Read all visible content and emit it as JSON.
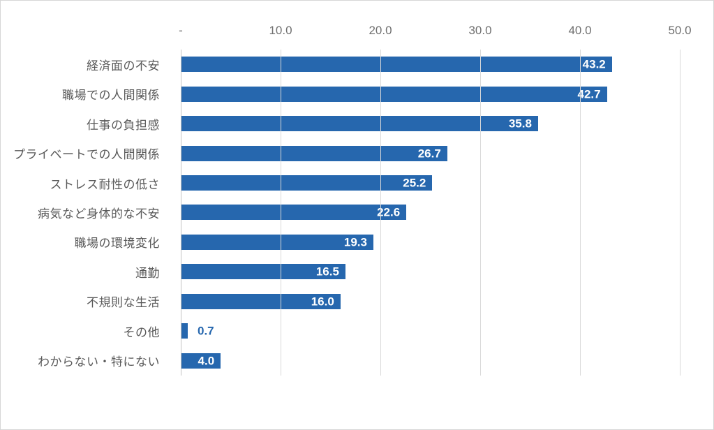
{
  "chart_data": {
    "type": "bar",
    "orientation": "horizontal",
    "title": "",
    "xlabel": "",
    "ylabel": "",
    "xlim": [
      0,
      50
    ],
    "grid": true,
    "legend": false,
    "categories": [
      "経済面の不安",
      "職場での人間関係",
      "仕事の負担感",
      "プライベートでの人間関係",
      "ストレス耐性の低さ",
      "病気など身体的な不安",
      "職場の環境変化",
      "通勤",
      "不規則な生活",
      "その他",
      "わからない・特にない"
    ],
    "values": [
      43.2,
      42.7,
      35.8,
      26.7,
      25.2,
      22.6,
      19.3,
      16.5,
      16.0,
      0.7,
      4.0
    ],
    "data_labels": [
      "43.2",
      "42.7",
      "35.8",
      "26.7",
      "25.2",
      "22.6",
      "19.3",
      "16.5",
      "16.0",
      "0.7",
      "4.0"
    ],
    "x_ticks": [
      {
        "label": "-",
        "value": 0
      },
      {
        "label": "10.0",
        "value": 10
      },
      {
        "label": "20.0",
        "value": 20
      },
      {
        "label": "30.0",
        "value": 30
      },
      {
        "label": "40.0",
        "value": 40
      },
      {
        "label": "50.0",
        "value": 50
      }
    ]
  },
  "style": {
    "bar_color": "#2667AE",
    "outside_label_color": "#2667AE",
    "inside_label_color": "#ffffff",
    "gridline_color": "#d9d9d9",
    "axis_line_color": "#c3c3c3",
    "text_color": "#595959",
    "tick_text_color": "#6f6f6f",
    "frame_border_color": "#d6d6d6"
  }
}
